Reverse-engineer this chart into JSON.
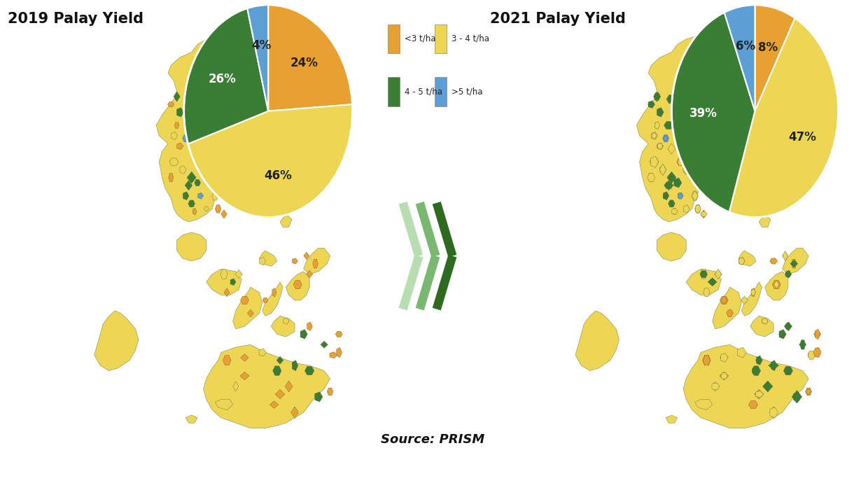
{
  "title_2019": "2019 Palay Yield",
  "title_2021": "2021 Palay Yield",
  "source_text": "Source: PRISM",
  "legend_labels": [
    "<3 t/ha",
    "3 - 4 t/ha",
    "4 - 5 t/ha",
    ">5 t/ha"
  ],
  "legend_colors": [
    "#E8A030",
    "#EDD654",
    "#3A7D35",
    "#5B9FD4"
  ],
  "pie_2019_values": [
    24,
    46,
    26,
    4
  ],
  "pie_2019_colors": [
    "#E8A030",
    "#EDD654",
    "#3A7D35",
    "#5B9FD4"
  ],
  "pie_2019_labels": [
    "24%",
    "46%",
    "26%",
    "4%"
  ],
  "pie_2021_values": [
    8,
    47,
    39,
    6
  ],
  "pie_2021_colors": [
    "#E8A030",
    "#EDD654",
    "#3A7D35",
    "#5B9FD4"
  ],
  "pie_2021_labels": [
    "8%",
    "47%",
    "39%",
    "6%"
  ],
  "bg_color_left": "#C8DFF0",
  "bg_color_right": "#C8DFF0",
  "center_bg_color": "#EBEBEB",
  "map_land_color": "#EDD654",
  "map_land_edge": "#888855",
  "arrow_colors": [
    "#B8DDB0",
    "#78B870",
    "#2E6B20"
  ],
  "title_fontsize": 15,
  "label_fontsize": 12,
  "pie_label_fontsize": 12,
  "source_fontsize": 13
}
